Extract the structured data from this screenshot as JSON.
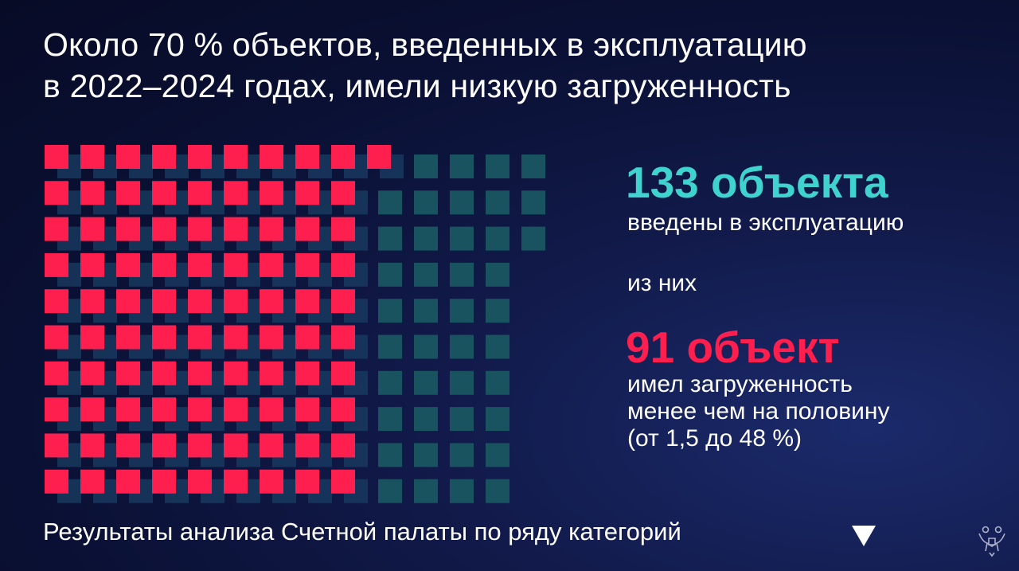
{
  "title": {
    "line1": "Около 70 % объектов, введенных в эксплуатацию",
    "line2": "в 2022–2024 годах, имели низкую загруженность"
  },
  "stats": {
    "total_value": "133 объекта",
    "total_desc": "введены в эксплуатацию",
    "of_them": "из них",
    "low_value": "91 объект",
    "low_desc_lines": [
      "имел загруженность",
      "менее чем на половину",
      "(от 1,5 до 48 %)"
    ]
  },
  "footer": {
    "text": "Результаты анализа Счетной палаты по ряду категорий"
  },
  "icons": {
    "next": "triangle-down-icon",
    "emblem": "emblem-icon"
  },
  "colors": {
    "accent_teal": "#3ed3cf",
    "accent_red": "#ff1f4f",
    "background": "#0a1033"
  },
  "chart_data": {
    "type": "waffle",
    "total": 133,
    "highlighted": 91,
    "rows": [
      14,
      14,
      14,
      13,
      13,
      13,
      13,
      13,
      13,
      13
    ],
    "highlighted_rows": [
      10,
      9,
      9,
      9,
      9,
      9,
      9,
      9,
      9,
      9
    ],
    "highlight_color": "#ff1f4f",
    "base_color": "#18535f"
  }
}
